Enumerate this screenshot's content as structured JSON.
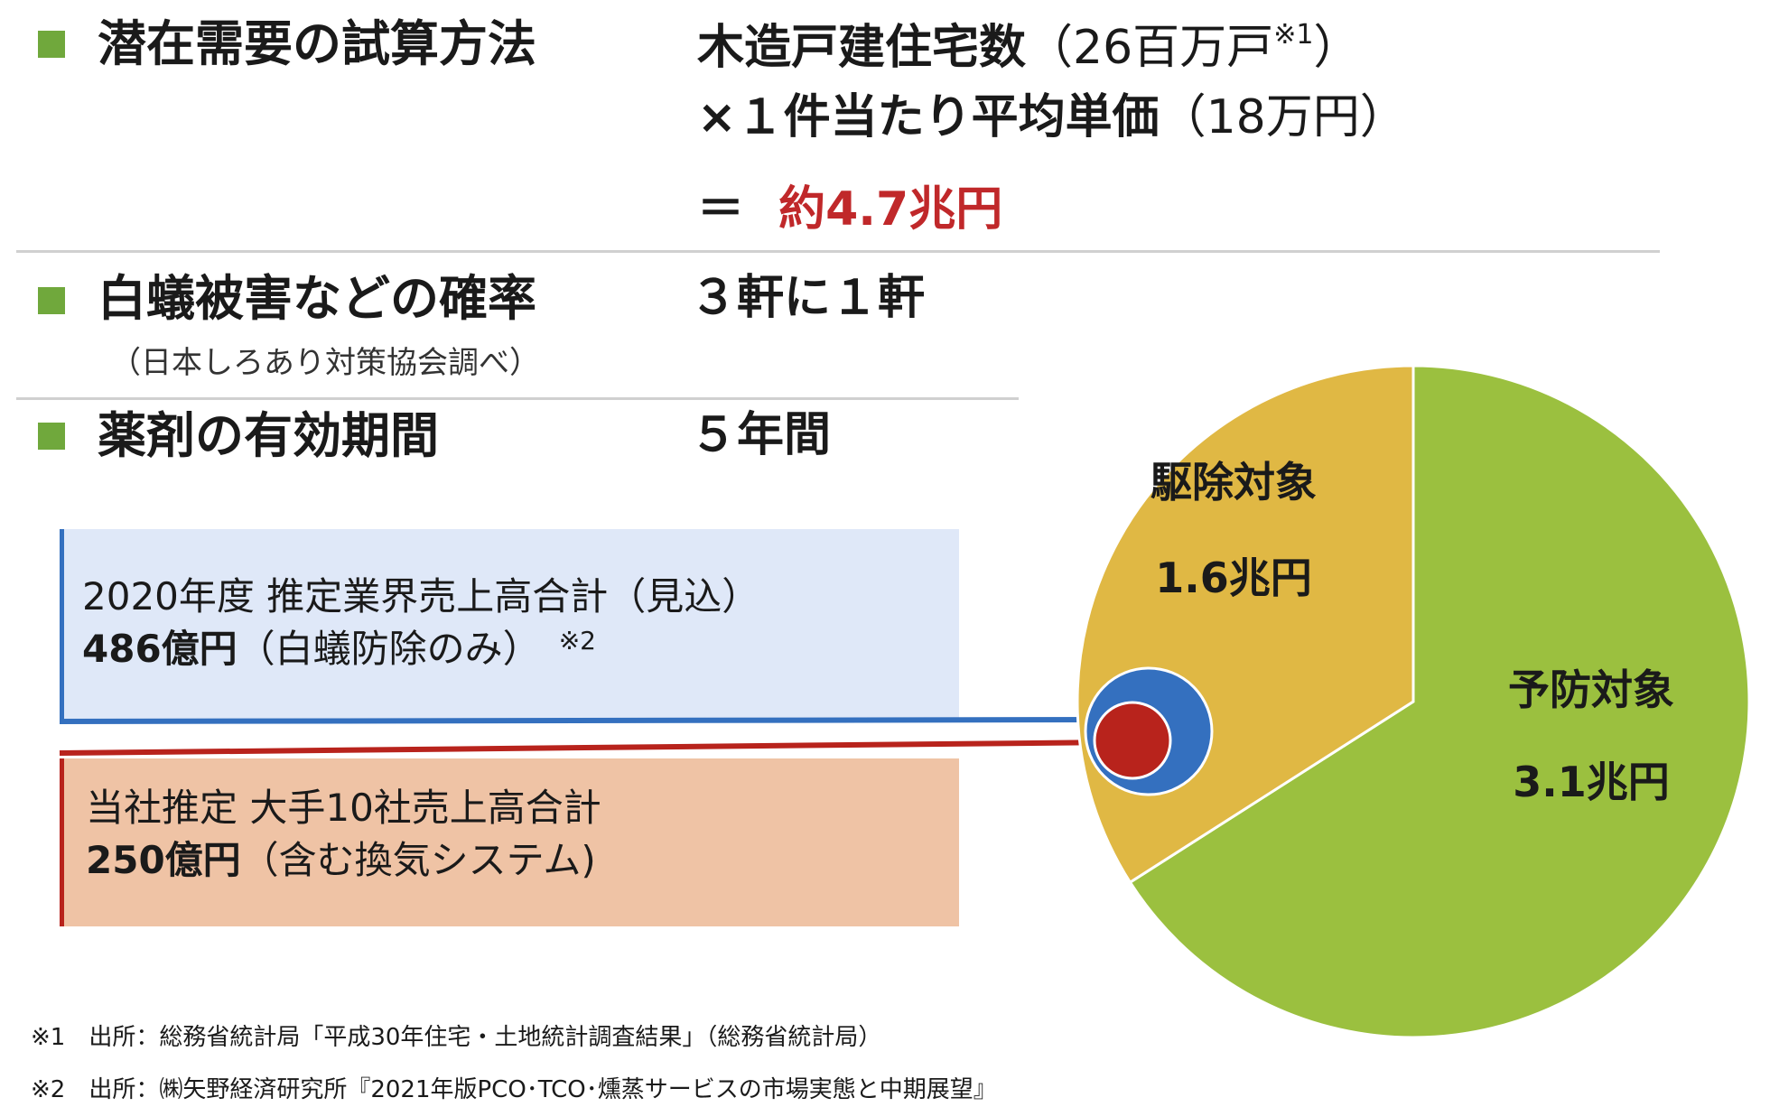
{
  "section1": {
    "heading": "潜在需要の試算方法",
    "formula_line1": "木造戸建住宅数",
    "formula_line1_paren": "（26百万戸",
    "formula_line1_note": "※1",
    "formula_line1_close": "）",
    "formula_line2": "×１件当たり平均単価",
    "formula_line2_paren": "（18万円）",
    "result_eq": "＝",
    "result_value": "約4.7兆円"
  },
  "section2": {
    "heading": "白蟻被害などの確率",
    "sub": "（日本しろあり対策協会調べ）",
    "value": "３軒に１軒"
  },
  "section3": {
    "heading": "薬剤の有効期間",
    "value": "５年間"
  },
  "box_blue": {
    "line1": "2020年度 推定業界売上高合計（見込）",
    "amount": "486億円",
    "detail": "（白蟻防除のみ）",
    "note": "※2"
  },
  "box_red": {
    "line1": "当社推定 大手10社売上高合計",
    "amount": "250億円",
    "detail": "（含む換気システム)"
  },
  "chart_data": {
    "type": "pie",
    "title": "",
    "unit": "兆円",
    "slices": [
      {
        "label": "予防対象",
        "value": 3.1,
        "value_label": "3.1兆円",
        "color": "#9bc03f"
      },
      {
        "label": "駆除対象",
        "value": 1.6,
        "value_label": "1.6兆円",
        "color": "#e0b844"
      }
    ],
    "overlays": [
      {
        "label": "486億円",
        "value_oku": 486,
        "color": "#3470bf"
      },
      {
        "label": "250億円",
        "value_oku": 250,
        "color": "#b8231c"
      }
    ]
  },
  "footnotes": {
    "note1": "※1　出所：総務省統計局「平成30年住宅・土地統計調査結果」（総務省統計局）",
    "note2": "※2　出所：㈱矢野経済研究所『2021年版PCO･TCO･燻蒸サービスの市場実態と中期展望』"
  },
  "colors": {
    "bullet": "#70a83c",
    "accent_red": "#c0282a",
    "box_blue_bg": "#dfe8f8",
    "box_blue_border": "#3470bf",
    "box_red_bg": "#efc3a5",
    "box_red_border": "#b8231c"
  }
}
